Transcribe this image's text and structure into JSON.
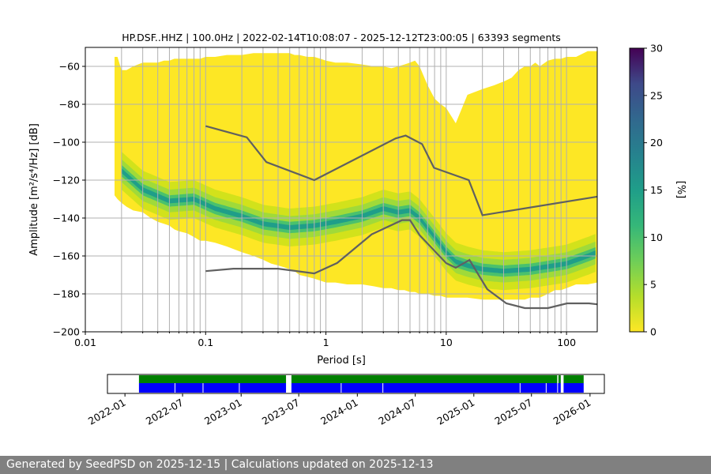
{
  "chart_data": [
    {
      "type": "heatmap",
      "title": "HP.DSF..HHZ | 100.0Hz | 2022-02-14T10:08:07 - 2025-12-12T23:00:05 | 63393 segments",
      "xlabel": "Period [s]",
      "ylabel": "Amplitude [m²/s⁴/Hz] [dB]",
      "x_scale": "log",
      "xlim": [
        0.01,
        180
      ],
      "ylim": [
        -200,
        -50
      ],
      "xticks": [
        "0.01",
        "0.1",
        "1",
        "10",
        "100"
      ],
      "yticks": [
        "−200",
        "−180",
        "−160",
        "−140",
        "−120",
        "−100",
        "−80",
        "−60"
      ],
      "grid": true,
      "colorbar": {
        "label": "[%]",
        "range": [
          0,
          30
        ],
        "ticks": [
          "0",
          "5",
          "10",
          "15",
          "20",
          "25",
          "30"
        ],
        "colormap": "viridis_r"
      },
      "mode_curve": {
        "x": [
          0.02,
          0.03,
          0.05,
          0.08,
          0.12,
          0.2,
          0.3,
          0.5,
          0.8,
          1.2,
          2,
          3,
          4,
          5,
          6,
          8,
          10,
          12,
          15,
          20,
          30,
          50,
          80,
          100,
          150,
          180
        ],
        "y": [
          -115,
          -125,
          -131,
          -130,
          -135,
          -139,
          -143,
          -145,
          -144,
          -142,
          -139,
          -135,
          -137,
          -136,
          -140,
          -150,
          -158,
          -163,
          -165,
          -167,
          -168,
          -167,
          -165,
          -164,
          -160,
          -158
        ]
      },
      "noise_model_high": {
        "x": [
          0.1,
          0.22,
          0.32,
          0.8,
          3.8,
          4.6,
          6.3,
          7.9,
          15.4,
          20,
          180
        ],
        "y": [
          -91.5,
          -97.4,
          -110.5,
          -120,
          -98,
          -96.5,
          -101,
          -113.5,
          -120,
          -138.5,
          -128.7
        ]
      },
      "noise_model_low": {
        "x": [
          0.1,
          0.17,
          0.4,
          0.8,
          1.24,
          2.4,
          4.3,
          5,
          6,
          10,
          12,
          15.6,
          21.9,
          31.6,
          45,
          70,
          101,
          154,
          180
        ],
        "y": [
          -168,
          -166.7,
          -166.7,
          -169.2,
          -163.7,
          -148.6,
          -141.1,
          -141.1,
          -149,
          -163.8,
          -166.2,
          -162.1,
          -177.5,
          -185,
          -187.5,
          -187.5,
          -185,
          -185,
          -185.5
        ]
      },
      "data_on_x": [
        0.0175,
        0.0185,
        0.02,
        0.022,
        0.025,
        0.03,
        0.035,
        0.04,
        0.045,
        0.05,
        0.055,
        0.06,
        0.07,
        0.08,
        0.09,
        0.1,
        0.12,
        0.15,
        0.2,
        0.25,
        0.3,
        0.35,
        0.4,
        0.45,
        0.5,
        0.55,
        0.6,
        0.7,
        0.8,
        0.9,
        1,
        1.2,
        1.5,
        2,
        2.5,
        3,
        3.5,
        4,
        4.5,
        5,
        5.5,
        6,
        7,
        8,
        9,
        10,
        12,
        15,
        20,
        25,
        30,
        35,
        40,
        45,
        50,
        55,
        60,
        70,
        80,
        90,
        100,
        120,
        150,
        180
      ],
      "data_on_ymax": [
        -55,
        -55,
        -62,
        -62,
        -60,
        -58,
        -58,
        -58,
        -57,
        -57,
        -56,
        -56,
        -56,
        -56,
        -56,
        -55,
        -55,
        -54,
        -54,
        -53,
        -53,
        -53,
        -53,
        -53,
        -53,
        -54,
        -54,
        -55,
        -55,
        -56,
        -57,
        -58,
        -58,
        -59,
        -60,
        -60,
        -61,
        -60,
        -59,
        -58,
        -57,
        -60,
        -70,
        -77,
        -80,
        -82,
        -90,
        -75,
        -72,
        -70,
        -68,
        -66,
        -62,
        -60,
        -60,
        -58,
        -60,
        -57,
        -56,
        -56,
        -55,
        -55,
        -52,
        -52
      ],
      "data_on_ymin": [
        -128,
        -130,
        -132,
        -134,
        -136,
        -137,
        -140,
        -142,
        -143,
        -144,
        -146,
        -147,
        -148,
        -150,
        -152,
        -152,
        -153,
        -155,
        -158,
        -160,
        -162,
        -164,
        -165,
        -166,
        -167,
        -168,
        -170,
        -171,
        -172,
        -173,
        -174,
        -174,
        -175,
        -175,
        -176,
        -177,
        -177,
        -178,
        -178,
        -179,
        -179,
        -180,
        -180,
        -181,
        -181,
        -182,
        -182,
        -182,
        -183,
        -183,
        -183,
        -183,
        -183,
        -183,
        -182,
        -182,
        -182,
        -180,
        -178,
        -178,
        -177,
        -175,
        -175,
        -174
      ]
    },
    {
      "type": "timeline",
      "xticks": [
        "2022-01",
        "2022-07",
        "2023-01",
        "2023-07",
        "2024-01",
        "2024-07",
        "2025-01",
        "2025-07",
        "2026-01"
      ],
      "range_start": "2021-11-07",
      "range_end": "2026-02-15",
      "data_start": "2022-02-14",
      "data_end": "2025-12-12",
      "upper_bar_color": "#008000",
      "lower_bar_color": "#0000ff",
      "upper_gaps": [
        [
          "2023-05-22",
          "2023-06-08"
        ],
        [
          "2025-09-20",
          "2025-09-22"
        ],
        [
          "2025-10-01",
          "2025-10-10"
        ]
      ],
      "lower_gaps": [
        [
          "2022-06-06",
          "2022-06-08"
        ],
        [
          "2022-09-02",
          "2022-09-04"
        ],
        [
          "2022-12-25",
          "2022-12-27"
        ],
        [
          "2023-05-22",
          "2023-06-08"
        ],
        [
          "2023-11-10",
          "2023-11-12"
        ],
        [
          "2024-03-20",
          "2024-03-22"
        ],
        [
          "2025-05-25",
          "2025-05-27"
        ],
        [
          "2025-08-15",
          "2025-08-17"
        ],
        [
          "2025-09-20",
          "2025-09-22"
        ],
        [
          "2025-10-01",
          "2025-10-10"
        ]
      ]
    }
  ],
  "footer": {
    "text": "Generated by SeedPSD on 2025-12-15 | Calculations updated on 2025-12-13"
  },
  "colors": {
    "noise_model_line": "#606060",
    "grid": "#b0b0b0",
    "footer_bg": "#808080"
  }
}
